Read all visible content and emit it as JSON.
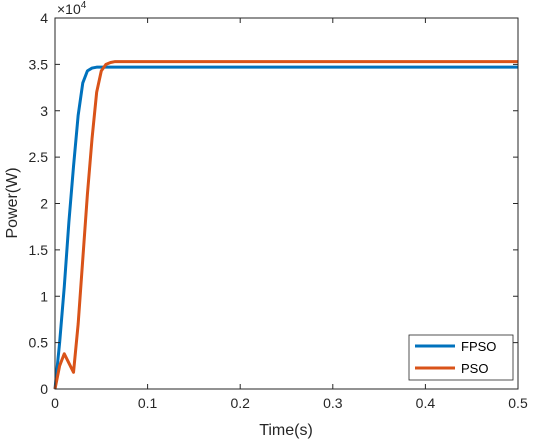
{
  "chart_data": {
    "type": "line",
    "title": "",
    "xlabel": "Time(s)",
    "ylabel": "Power(W)",
    "xlim": [
      0,
      0.5
    ],
    "ylim": [
      0,
      4
    ],
    "y_exponent_base": "×10",
    "y_exponent": "4",
    "x_ticks": [
      "0",
      "0.1",
      "0.2",
      "0.3",
      "0.4",
      "0.5"
    ],
    "y_ticks": [
      "0",
      "0.5",
      "1",
      "1.5",
      "2",
      "2.5",
      "3",
      "3.5",
      "4"
    ],
    "x_tick_values": [
      0,
      0.1,
      0.2,
      0.3,
      0.4,
      0.5
    ],
    "y_tick_values": [
      0,
      0.5,
      1,
      1.5,
      2,
      2.5,
      3,
      3.5,
      4
    ],
    "grid": false,
    "legend_position": "bottom-right",
    "series": [
      {
        "name": "FPSO",
        "color": "#0072BD",
        "x": [
          0,
          0.005,
          0.01,
          0.015,
          0.02,
          0.025,
          0.03,
          0.035,
          0.04,
          0.045,
          0.05,
          0.06,
          0.1,
          0.2,
          0.3,
          0.4,
          0.5
        ],
        "y": [
          0,
          0.5,
          1.1,
          1.8,
          2.4,
          2.95,
          3.3,
          3.43,
          3.46,
          3.47,
          3.47,
          3.47,
          3.47,
          3.47,
          3.47,
          3.47,
          3.47
        ]
      },
      {
        "name": "PSO",
        "color": "#D95319",
        "x": [
          0,
          0.005,
          0.01,
          0.015,
          0.02,
          0.025,
          0.03,
          0.035,
          0.04,
          0.045,
          0.05,
          0.055,
          0.06,
          0.065,
          0.07,
          0.1,
          0.2,
          0.3,
          0.4,
          0.5
        ],
        "y": [
          0,
          0.25,
          0.38,
          0.28,
          0.18,
          0.7,
          1.4,
          2.1,
          2.7,
          3.2,
          3.43,
          3.5,
          3.52,
          3.53,
          3.53,
          3.53,
          3.53,
          3.53,
          3.53,
          3.53
        ]
      }
    ]
  }
}
